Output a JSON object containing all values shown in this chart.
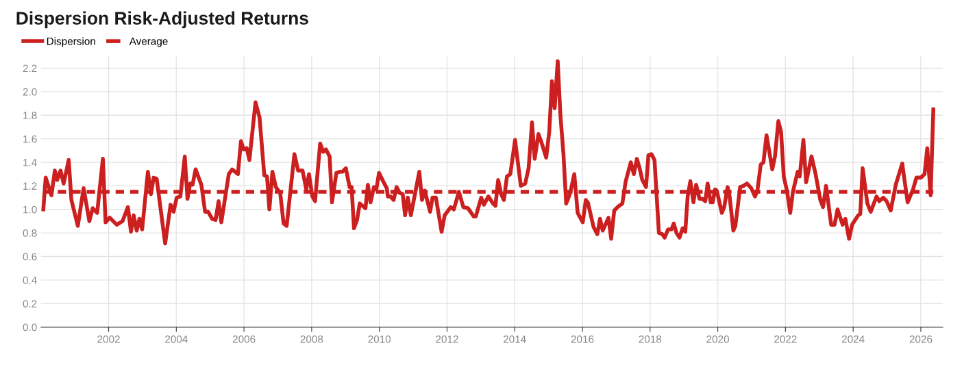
{
  "chart_data": {
    "type": "line",
    "title": "Dispersion Risk-Adjusted Returns",
    "xlim": [
      2000,
      2026.65
    ],
    "xticks": [
      2002,
      2004,
      2006,
      2008,
      2010,
      2012,
      2014,
      2016,
      2018,
      2020,
      2022,
      2024,
      2026
    ],
    "ylim": [
      0,
      2.3
    ],
    "yticks": [
      {
        "value": 0,
        "label": "0.0"
      },
      {
        "value": 0.2,
        "label": "0.2"
      },
      {
        "value": 0.4,
        "label": "0.4"
      },
      {
        "value": 0.6,
        "label": "0.6"
      },
      {
        "value": 0.8,
        "label": "0.8"
      },
      {
        "value": 1,
        "label": "1.0"
      },
      {
        "value": 1.2,
        "label": "1.2"
      },
      {
        "value": 1.4,
        "label": "1.4"
      },
      {
        "value": 1.6,
        "label": "1.6"
      },
      {
        "value": 1.8,
        "label": "1.8"
      },
      {
        "value": 2,
        "label": "2.0"
      },
      {
        "value": 2.2,
        "label": "2.2"
      }
    ],
    "grid": true,
    "legend": "top left",
    "marker": "none",
    "series": [
      {
        "name": "Dispersion",
        "color": "#cc1f1f",
        "line_style": "solid",
        "x": [
          2000.07,
          2000.14,
          2000.31,
          2000.41,
          2000.48,
          2000.58,
          2000.67,
          2000.82,
          2000.9,
          2001.09,
          2001.26,
          2001.43,
          2001.53,
          2001.66,
          2001.83,
          2001.91,
          2002.03,
          2002.24,
          2002.41,
          2002.57,
          2002.66,
          2002.74,
          2002.83,
          2002.91,
          2002.99,
          2003.16,
          2003.25,
          2003.33,
          2003.42,
          2003.67,
          2003.83,
          2003.92,
          2004.01,
          2004.12,
          2004.25,
          2004.33,
          2004.41,
          2004.48,
          2004.57,
          2004.74,
          2004.85,
          2004.94,
          2005.06,
          2005.16,
          2005.25,
          2005.33,
          2005.55,
          2005.65,
          2005.82,
          2005.91,
          2005.99,
          2006.08,
          2006.16,
          2006.34,
          2006.46,
          2006.6,
          2006.68,
          2006.75,
          2006.84,
          2006.94,
          2007.07,
          2007.17,
          2007.26,
          2007.49,
          2007.6,
          2007.73,
          2007.84,
          2007.92,
          2008.02,
          2008.1,
          2008.25,
          2008.34,
          2008.42,
          2008.53,
          2008.6,
          2008.73,
          2008.83,
          2008.91,
          2009.01,
          2009.12,
          2009.18,
          2009.25,
          2009.34,
          2009.42,
          2009.59,
          2009.66,
          2009.74,
          2009.84,
          2009.91,
          2009.99,
          2010.11,
          2010.22,
          2010.25,
          2010.33,
          2010.42,
          2010.51,
          2010.6,
          2010.69,
          2010.76,
          2010.84,
          2010.93,
          2011.18,
          2011.26,
          2011.34,
          2011.5,
          2011.57,
          2011.67,
          2011.84,
          2011.93,
          2012.11,
          2012.2,
          2012.35,
          2012.48,
          2012.62,
          2012.79,
          2012.85,
          2013.01,
          2013.09,
          2013.22,
          2013.36,
          2013.43,
          2013.51,
          2013.6,
          2013.68,
          2013.77,
          2013.87,
          2014.01,
          2014.18,
          2014.31,
          2014.41,
          2014.51,
          2014.59,
          2014.7,
          2014.79,
          2014.93,
          2015.02,
          2015.1,
          2015.18,
          2015.27,
          2015.35,
          2015.44,
          2015.52,
          2015.64,
          2015.76,
          2015.86,
          2016.01,
          2016.1,
          2016.16,
          2016.33,
          2016.44,
          2016.52,
          2016.6,
          2016.77,
          2016.85,
          2016.94,
          2017.04,
          2017.18,
          2017.28,
          2017.43,
          2017.52,
          2017.61,
          2017.69,
          2017.77,
          2017.88,
          2017.95,
          2018.04,
          2018.13,
          2018.26,
          2018.36,
          2018.43,
          2018.53,
          2018.63,
          2018.7,
          2018.78,
          2018.87,
          2018.96,
          2019.04,
          2019.11,
          2019.19,
          2019.28,
          2019.36,
          2019.46,
          2019.54,
          2019.63,
          2019.7,
          2019.79,
          2019.85,
          2019.92,
          2019.97,
          2020.12,
          2020.19,
          2020.29,
          2020.35,
          2020.46,
          2020.52,
          2020.66,
          2020.76,
          2020.86,
          2020.99,
          2021.1,
          2021.17,
          2021.27,
          2021.35,
          2021.44,
          2021.61,
          2021.69,
          2021.79,
          2021.87,
          2021.95,
          2022.05,
          2022.14,
          2022.22,
          2022.36,
          2022.42,
          2022.53,
          2022.61,
          2022.77,
          2022.89,
          2023.03,
          2023.11,
          2023.2,
          2023.35,
          2023.45,
          2023.54,
          2023.69,
          2023.77,
          2023.88,
          2023.97,
          2024.15,
          2024.21,
          2024.28,
          2024.42,
          2024.52,
          2024.69,
          2024.77,
          2024.89,
          2024.99,
          2025.11,
          2025.26,
          2025.45,
          2025.61,
          2025.77,
          2025.87,
          2026.0,
          2026.11,
          2026.19,
          2026.29,
          2026.37
        ],
        "values": [
          1.0,
          1.27,
          1.12,
          1.33,
          1.25,
          1.33,
          1.22,
          1.42,
          1.08,
          0.86,
          1.18,
          0.9,
          1.01,
          0.97,
          1.43,
          0.89,
          0.93,
          0.87,
          0.9,
          1.02,
          0.81,
          0.95,
          0.82,
          0.92,
          0.83,
          1.32,
          1.13,
          1.27,
          1.26,
          0.71,
          1.04,
          0.98,
          1.1,
          1.11,
          1.45,
          1.09,
          1.22,
          1.21,
          1.34,
          1.21,
          0.98,
          0.98,
          0.92,
          0.91,
          1.07,
          0.89,
          1.3,
          1.34,
          1.3,
          1.58,
          1.51,
          1.52,
          1.42,
          1.91,
          1.78,
          1.29,
          1.28,
          1.0,
          1.32,
          1.19,
          1.14,
          0.88,
          0.86,
          1.47,
          1.33,
          1.33,
          1.17,
          1.3,
          1.11,
          1.07,
          1.56,
          1.49,
          1.51,
          1.45,
          1.06,
          1.31,
          1.32,
          1.32,
          1.35,
          1.19,
          1.19,
          0.84,
          0.91,
          1.05,
          1.01,
          1.21,
          1.06,
          1.19,
          1.17,
          1.31,
          1.24,
          1.18,
          1.11,
          1.11,
          1.08,
          1.19,
          1.14,
          1.13,
          0.95,
          1.1,
          0.95,
          1.32,
          1.08,
          1.16,
          0.98,
          1.1,
          1.1,
          0.81,
          0.95,
          1.02,
          1.0,
          1.15,
          1.02,
          1.01,
          0.94,
          0.94,
          1.1,
          1.04,
          1.11,
          1.05,
          1.03,
          1.25,
          1.13,
          1.08,
          1.28,
          1.3,
          1.59,
          1.2,
          1.22,
          1.35,
          1.74,
          1.43,
          1.64,
          1.57,
          1.44,
          1.66,
          2.09,
          1.86,
          2.26,
          1.8,
          1.47,
          1.05,
          1.14,
          1.3,
          0.97,
          0.89,
          1.08,
          1.06,
          0.85,
          0.79,
          0.92,
          0.82,
          0.93,
          0.75,
          0.99,
          1.02,
          1.05,
          1.24,
          1.4,
          1.3,
          1.43,
          1.35,
          1.25,
          1.19,
          1.46,
          1.47,
          1.42,
          0.8,
          0.79,
          0.76,
          0.83,
          0.83,
          0.88,
          0.8,
          0.76,
          0.84,
          0.81,
          1.11,
          1.24,
          1.06,
          1.21,
          1.09,
          1.09,
          1.07,
          1.22,
          1.06,
          1.06,
          1.17,
          1.16,
          0.97,
          1.02,
          1.19,
          1.11,
          0.82,
          0.86,
          1.19,
          1.2,
          1.22,
          1.18,
          1.11,
          1.16,
          1.38,
          1.4,
          1.63,
          1.34,
          1.45,
          1.75,
          1.66,
          1.28,
          1.15,
          0.97,
          1.15,
          1.32,
          1.28,
          1.59,
          1.23,
          1.45,
          1.3,
          1.08,
          1.02,
          1.2,
          0.87,
          0.87,
          1.0,
          0.87,
          0.92,
          0.75,
          0.87,
          0.95,
          0.96,
          1.35,
          1.05,
          0.98,
          1.11,
          1.07,
          1.1,
          1.07,
          0.99,
          1.21,
          1.39,
          1.06,
          1.17,
          1.27,
          1.27,
          1.3,
          1.52,
          1.12,
          1.85
        ]
      },
      {
        "name": "Average",
        "color": "#cc1f1f",
        "line_style": "dashed",
        "x": [
          2000.07,
          2026.37
        ],
        "values": [
          1.15,
          1.15
        ]
      }
    ]
  }
}
